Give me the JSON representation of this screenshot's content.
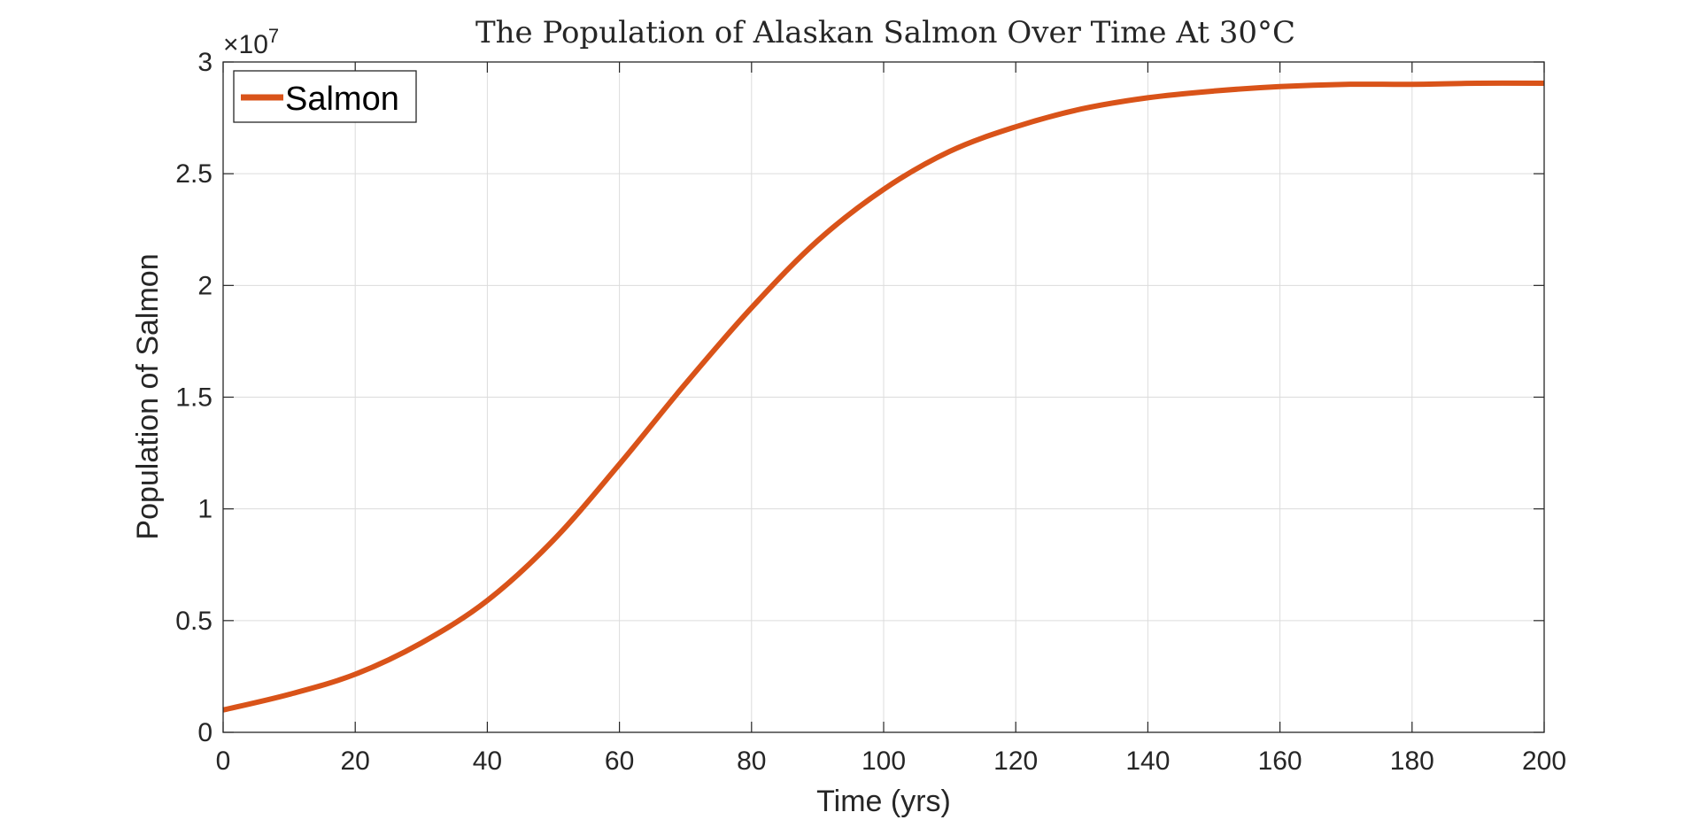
{
  "chart_data": {
    "type": "line",
    "title": "The Population of Alaskan Salmon Over Time At 30°C",
    "xlabel": "Time (yrs)",
    "ylabel": "Population of Salmon",
    "xlim": [
      0,
      200
    ],
    "ylim": [
      0,
      3
    ],
    "x_ticks": [
      "0",
      "20",
      "40",
      "60",
      "80",
      "100",
      "120",
      "140",
      "160",
      "180",
      "200"
    ],
    "y_ticks": [
      "0",
      "0.5",
      "1",
      "1.5",
      "2",
      "2.5",
      "3"
    ],
    "y_exponent": {
      "base": "×10",
      "power": "7"
    },
    "grid": true,
    "legend_position": "top-left",
    "series": [
      {
        "name": "Salmon",
        "color": "#D95319",
        "x": [
          0,
          10,
          20,
          30,
          40,
          50,
          60,
          70,
          80,
          90,
          100,
          110,
          120,
          130,
          140,
          150,
          160,
          170,
          180,
          190,
          200
        ],
        "y": [
          0.1,
          0.17,
          0.26,
          0.4,
          0.59,
          0.86,
          1.2,
          1.56,
          1.9,
          2.2,
          2.43,
          2.6,
          2.71,
          2.79,
          2.84,
          2.87,
          2.89,
          2.9,
          2.9,
          2.905,
          2.905
        ]
      }
    ]
  }
}
